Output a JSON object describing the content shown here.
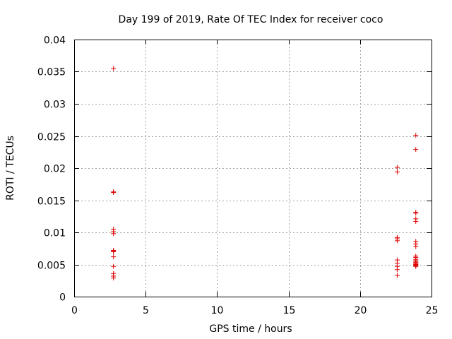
{
  "chart_data": {
    "type": "scatter",
    "title": "Day 199 of 2019, Rate Of TEC Index for receiver coco",
    "xlabel": "GPS time / hours",
    "ylabel": "ROTI / TECUs",
    "xlim": [
      0,
      25
    ],
    "ylim": [
      0,
      0.04
    ],
    "xticks": [
      0,
      5,
      10,
      15,
      20,
      25
    ],
    "xtick_labels": [
      "0",
      "5",
      "10",
      "15",
      "20",
      "25"
    ],
    "yticks": [
      0,
      0.005,
      0.01,
      0.015,
      0.02,
      0.025,
      0.03,
      0.035,
      0.04
    ],
    "ytick_labels": [
      "0",
      "0.005",
      "0.01",
      "0.015",
      "0.02",
      "0.025",
      "0.03",
      "0.035",
      "0.04"
    ],
    "grid": true,
    "marker": "+",
    "marker_color": "#dd0000",
    "series": [
      {
        "name": "ROTI",
        "x": [
          2.75,
          2.75,
          2.75,
          2.75,
          2.75,
          2.75,
          2.75,
          2.75,
          2.75,
          2.75,
          2.75,
          2.75,
          2.75,
          2.75,
          22.6,
          22.6,
          22.6,
          22.6,
          22.6,
          22.6,
          22.6,
          22.6,
          22.6,
          22.6,
          23.9,
          23.9,
          23.9,
          23.9,
          23.9,
          23.9,
          23.9,
          23.9,
          23.9,
          23.9,
          23.9,
          23.9,
          23.9,
          23.9,
          23.9,
          23.9,
          23.9,
          23.9,
          23.9,
          23.9
        ],
        "y": [
          0.0355,
          0.0163,
          0.0162,
          0.0105,
          0.0101,
          0.0098,
          0.0072,
          0.0071,
          0.007,
          0.0062,
          0.0047,
          0.0036,
          0.0032,
          0.0029,
          0.0201,
          0.0194,
          0.0092,
          0.009,
          0.0087,
          0.0057,
          0.0052,
          0.0047,
          0.0042,
          0.0033,
          0.0251,
          0.0229,
          0.0131,
          0.013,
          0.0121,
          0.0117,
          0.0086,
          0.0082,
          0.0078,
          0.0063,
          0.0061,
          0.0058,
          0.0056,
          0.0054,
          0.0053,
          0.0051,
          0.005,
          0.0049,
          0.0048,
          0.0047
        ]
      }
    ]
  }
}
